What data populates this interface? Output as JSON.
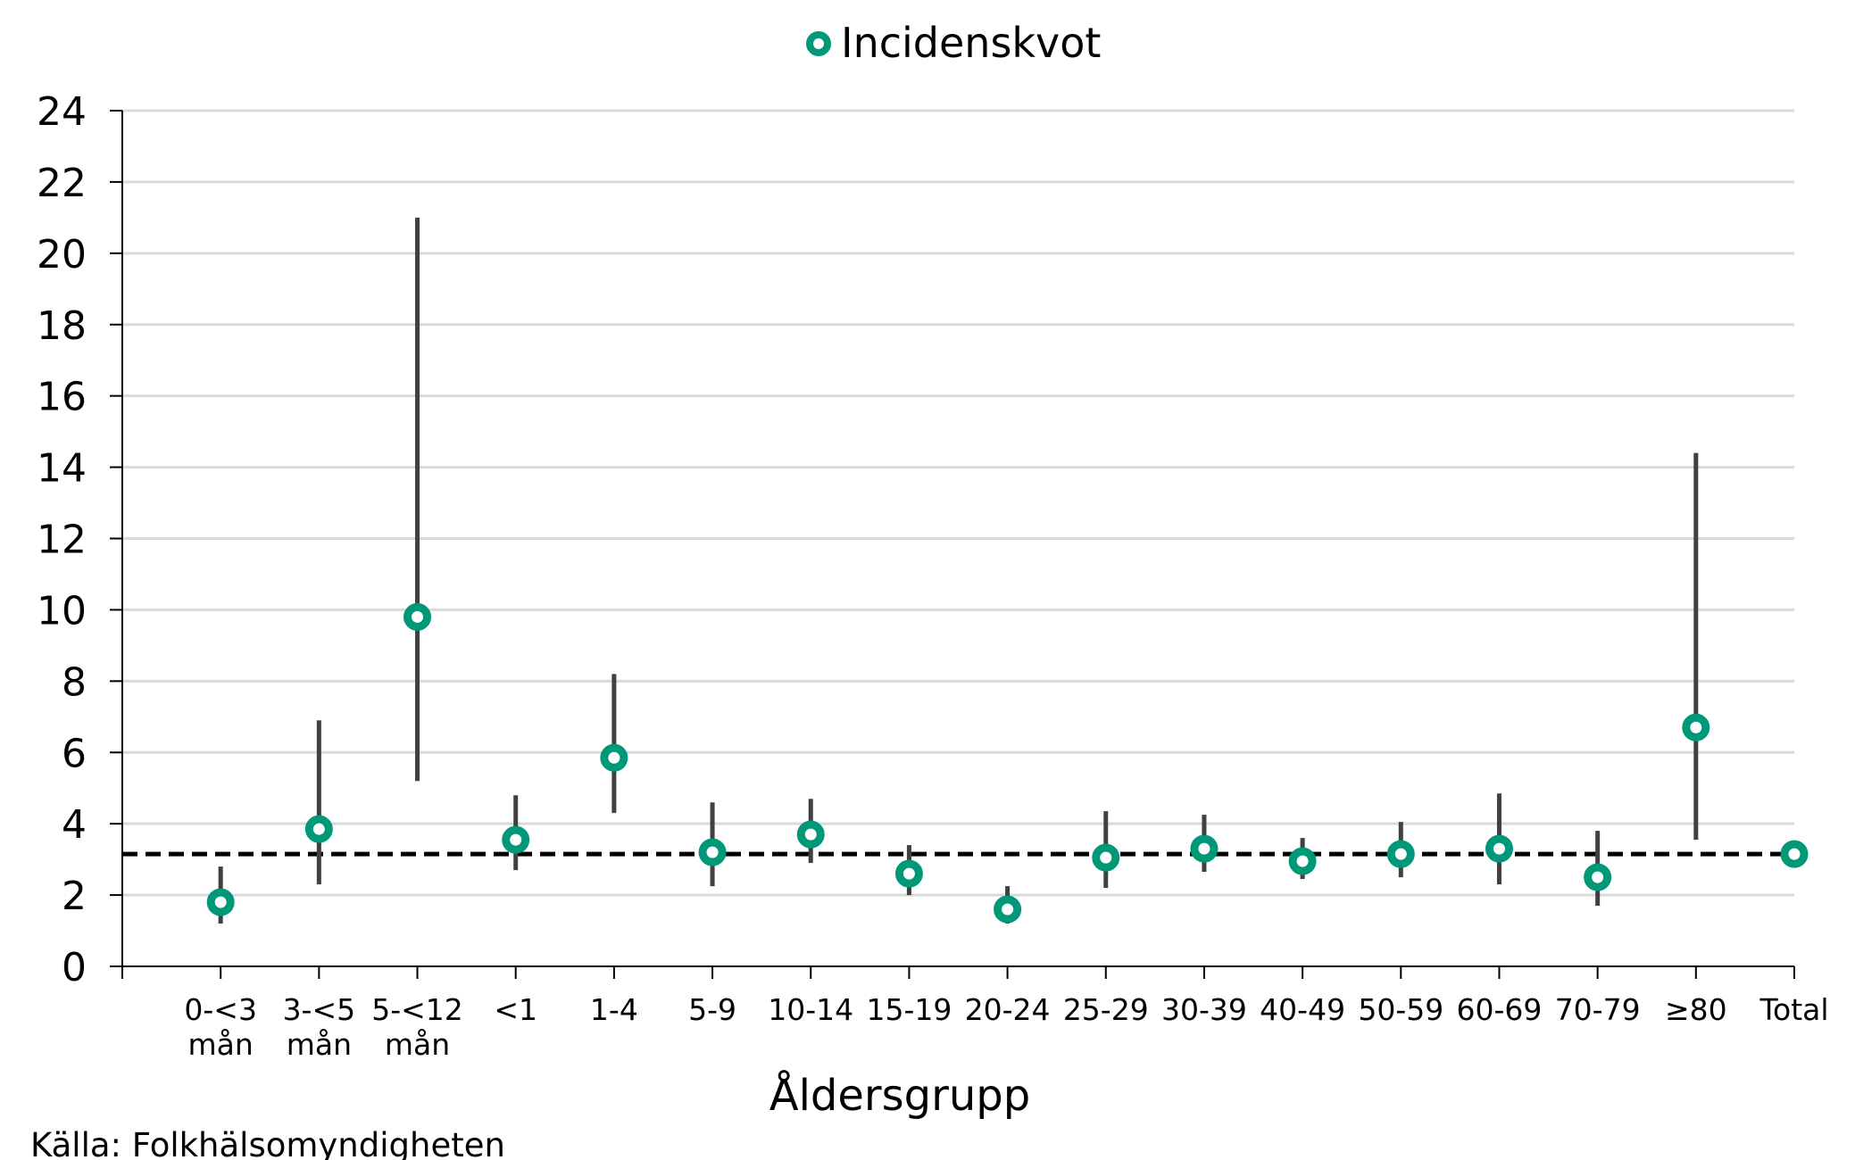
{
  "chart_data": {
    "type": "scatter",
    "title": "",
    "xlabel": "Åldersgrupp",
    "ylabel": "",
    "ylim": [
      0,
      24
    ],
    "yticks": [
      0,
      2,
      4,
      6,
      8,
      10,
      12,
      14,
      16,
      18,
      20,
      22,
      24
    ],
    "grid": "horizontal",
    "legend": {
      "position": "top-center",
      "entries": [
        "Incidenskvot"
      ]
    },
    "categories": [
      [
        "0-<3",
        "mån"
      ],
      [
        "3-<5",
        "mån"
      ],
      [
        "5-<12",
        "mån"
      ],
      [
        "<1"
      ],
      [
        "1-4"
      ],
      [
        "5-9"
      ],
      [
        "10-14"
      ],
      [
        "15-19"
      ],
      [
        "20-24"
      ],
      [
        "25-29"
      ],
      [
        "30-39"
      ],
      [
        "40-49"
      ],
      [
        "50-59"
      ],
      [
        "60-69"
      ],
      [
        "70-79"
      ],
      [
        "≥80"
      ],
      [
        "Total"
      ]
    ],
    "series": [
      {
        "name": "Incidenskvot",
        "values": [
          1.8,
          3.85,
          9.8,
          3.55,
          5.85,
          3.2,
          3.7,
          2.6,
          1.6,
          3.05,
          3.3,
          2.95,
          3.15,
          3.3,
          2.5,
          6.7,
          3.15
        ],
        "ci_lower": [
          1.2,
          2.3,
          5.2,
          2.7,
          4.3,
          2.25,
          2.9,
          2.0,
          1.2,
          2.2,
          2.65,
          2.45,
          2.5,
          2.3,
          1.7,
          3.55,
          null
        ],
        "ci_upper": [
          2.8,
          6.9,
          21.0,
          4.8,
          8.2,
          4.6,
          4.7,
          3.4,
          2.25,
          4.35,
          4.25,
          3.6,
          4.05,
          4.85,
          3.8,
          14.4,
          null
        ]
      }
    ],
    "reference_line": {
      "value": 3.15,
      "style": "dashed"
    },
    "colors": {
      "marker": "#009879",
      "error_bar": "#404040",
      "grid": "#d9d9d9",
      "reference": "#000000"
    }
  },
  "source": "Källa: Folkhälsomyndigheten"
}
